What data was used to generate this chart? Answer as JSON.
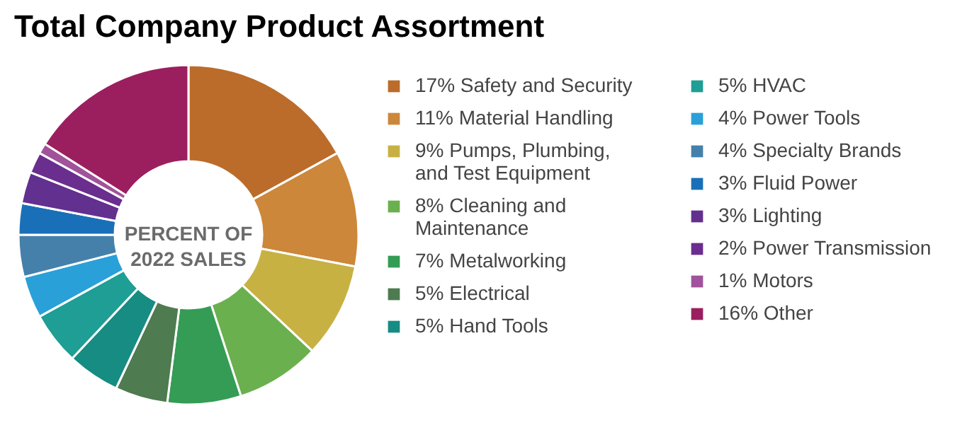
{
  "chart_data": {
    "type": "donut",
    "title": "Total Company Product Assortment",
    "categories": [
      "Safety and Security",
      "Material Handling",
      "Pumps, Plumbing, and Test Equipment",
      "Cleaning and Maintenance",
      "Metalworking",
      "Electrical",
      "Hand Tools",
      "HVAC",
      "Power Tools",
      "Specialty Brands",
      "Fluid Power",
      "Lighting",
      "Power Transmission",
      "Motors",
      "Other"
    ],
    "values": [
      17,
      11,
      9,
      8,
      7,
      5,
      5,
      5,
      4,
      4,
      3,
      3,
      2,
      1,
      16
    ],
    "value_labels": [
      "17%",
      "11%",
      "9%",
      "8%",
      "7%",
      "5%",
      "5%",
      "5%",
      "4%",
      "4%",
      "3%",
      "3%",
      "2%",
      "1%",
      "16%"
    ],
    "colors": [
      "#bb6c2a",
      "#cc873a",
      "#c8b143",
      "#6bb04f",
      "#349c55",
      "#4e7b4f",
      "#168c82",
      "#1e9e94",
      "#2aa0d8",
      "#4580ab",
      "#1a70b8",
      "#62308f",
      "#6a2e8e",
      "#a0539a",
      "#9b1f5f"
    ],
    "annotations": [
      "PERCENT OF 2022 SALES"
    ],
    "legend": "right"
  }
}
